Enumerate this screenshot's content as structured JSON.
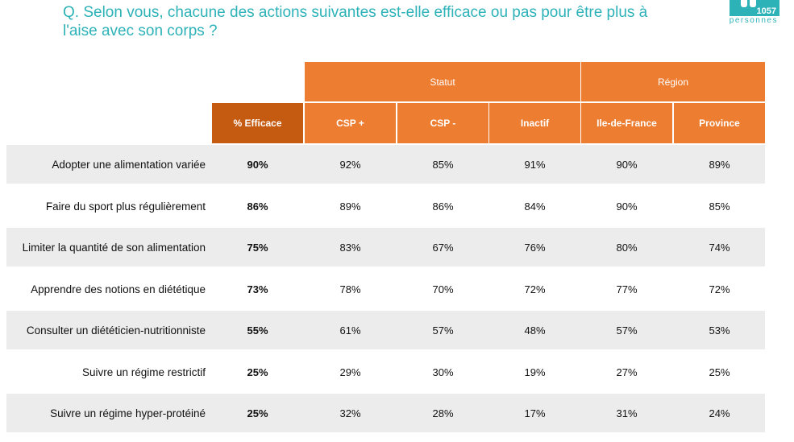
{
  "question": "Q. Selon vous, chacune des actions suivantes est-elle efficace ou pas pour être plus à l'aise avec son corps ?",
  "badge": {
    "count": "1057",
    "label": "personnes"
  },
  "colors": {
    "accent": "#2db2b8",
    "header": "#ed7d31",
    "header_dark": "#c55a11",
    "row_shade": "#ececec"
  },
  "groups": [
    {
      "label": "Statut",
      "span": 3
    },
    {
      "label": "Région",
      "span": 2
    }
  ],
  "columns": [
    "% Efficace",
    "CSP +",
    "CSP -",
    "Inactif",
    "Ile-de-France",
    "Province"
  ],
  "rows": [
    {
      "label": "Adopter une alimentation variée",
      "values": [
        "90%",
        "92%",
        "85%",
        "91%",
        "90%",
        "89%"
      ]
    },
    {
      "label": "Faire du sport plus régulièrement",
      "values": [
        "86%",
        "89%",
        "86%",
        "84%",
        "90%",
        "85%"
      ]
    },
    {
      "label": "Limiter la quantité de son alimentation",
      "values": [
        "75%",
        "83%",
        "67%",
        "76%",
        "80%",
        "74%"
      ]
    },
    {
      "label": "Apprendre des notions en diététique",
      "values": [
        "73%",
        "78%",
        "70%",
        "72%",
        "77%",
        "72%"
      ]
    },
    {
      "label": "Consulter un diététicien-nutritionniste",
      "values": [
        "55%",
        "61%",
        "57%",
        "48%",
        "57%",
        "53%"
      ]
    },
    {
      "label": "Suivre un régime restrictif",
      "values": [
        "25%",
        "29%",
        "30%",
        "19%",
        "27%",
        "25%"
      ]
    },
    {
      "label": "Suivre un régime hyper-protéiné",
      "values": [
        "25%",
        "32%",
        "28%",
        "17%",
        "31%",
        "24%"
      ]
    }
  ],
  "chart_data": {
    "type": "table",
    "categories": [
      "Adopter une alimentation variée",
      "Faire du sport plus régulièrement",
      "Limiter la quantité de son alimentation",
      "Apprendre des notions en diététique",
      "Consulter un diététicien-nutritionniste",
      "Suivre un régime restrictif",
      "Suivre un régime hyper-protéiné"
    ],
    "series": [
      {
        "name": "% Efficace",
        "values": [
          90,
          86,
          75,
          73,
          55,
          25,
          25
        ]
      },
      {
        "name": "CSP +",
        "values": [
          92,
          89,
          83,
          78,
          61,
          29,
          32
        ]
      },
      {
        "name": "CSP -",
        "values": [
          85,
          86,
          67,
          70,
          57,
          30,
          28
        ]
      },
      {
        "name": "Inactif",
        "values": [
          91,
          84,
          76,
          72,
          48,
          19,
          17
        ]
      },
      {
        "name": "Ile-de-France",
        "values": [
          90,
          90,
          80,
          77,
          57,
          27,
          31
        ]
      },
      {
        "name": "Province",
        "values": [
          89,
          85,
          74,
          72,
          53,
          25,
          24
        ]
      }
    ]
  }
}
